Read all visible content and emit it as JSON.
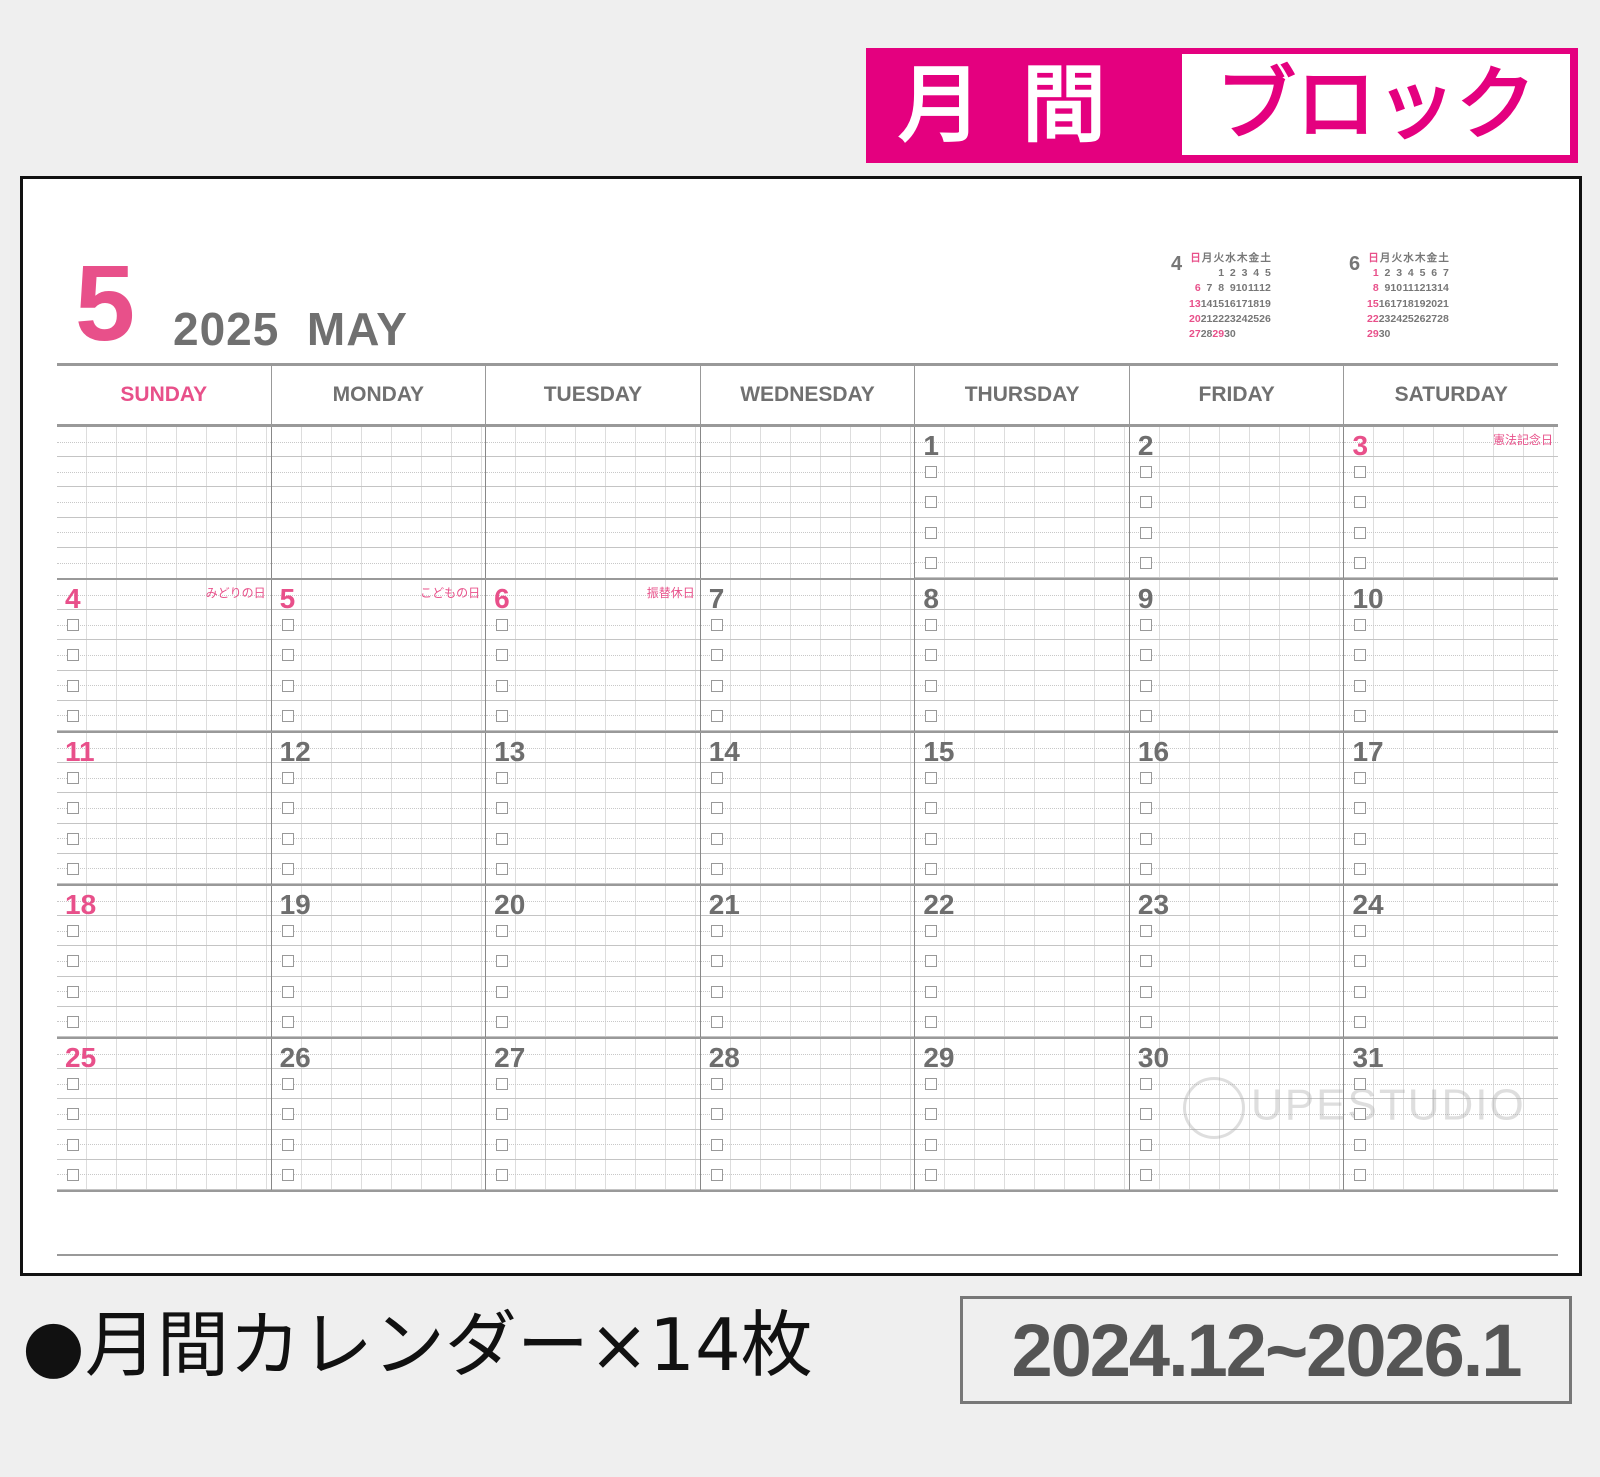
{
  "banner": {
    "left": "月間",
    "right": "ブロック",
    "color": "#e4007f"
  },
  "header": {
    "month_number": "5",
    "year_month": "2025  MAY"
  },
  "accent_colors": {
    "holiday": "#e8508a",
    "text": "#707070"
  },
  "mini_calendars": [
    {
      "month": "4",
      "weekdays": [
        "日",
        "月",
        "火",
        "水",
        "木",
        "金",
        "土"
      ],
      "weeks": [
        [
          "",
          "",
          "1",
          "2",
          "3",
          "4",
          "5"
        ],
        [
          "6",
          "7",
          "8",
          "9",
          "10",
          "11",
          "12"
        ],
        [
          "13",
          "14",
          "15",
          "16",
          "17",
          "18",
          "19"
        ],
        [
          "20",
          "21",
          "22",
          "23",
          "24",
          "25",
          "26"
        ],
        [
          "27",
          "28",
          "29",
          "30",
          "",
          "",
          ""
        ]
      ],
      "red_days": [
        "6",
        "13",
        "20",
        "27",
        "29"
      ]
    },
    {
      "month": "6",
      "weekdays": [
        "日",
        "月",
        "火",
        "水",
        "木",
        "金",
        "土"
      ],
      "weeks": [
        [
          "1",
          "2",
          "3",
          "4",
          "5",
          "6",
          "7"
        ],
        [
          "8",
          "9",
          "10",
          "11",
          "12",
          "13",
          "14"
        ],
        [
          "15",
          "16",
          "17",
          "18",
          "19",
          "20",
          "21"
        ],
        [
          "22",
          "23",
          "24",
          "25",
          "26",
          "27",
          "28"
        ],
        [
          "29",
          "30",
          "",
          "",
          "",
          "",
          ""
        ]
      ],
      "red_days": [
        "1",
        "8",
        "15",
        "22",
        "29"
      ]
    }
  ],
  "weekdays": [
    "SUNDAY",
    "MONDAY",
    "TUESDAY",
    "WEDNESDAY",
    "THURSDAY",
    "FRIDAY",
    "SATURDAY"
  ],
  "weeks": [
    [
      {
        "day": ""
      },
      {
        "day": ""
      },
      {
        "day": ""
      },
      {
        "day": ""
      },
      {
        "day": "1"
      },
      {
        "day": "2"
      },
      {
        "day": "3",
        "red": true,
        "holiday": "憲法記念日"
      }
    ],
    [
      {
        "day": "4",
        "red": true,
        "holiday": "みどりの日"
      },
      {
        "day": "5",
        "red": true,
        "holiday": "こどもの日"
      },
      {
        "day": "6",
        "red": true,
        "holiday": "振替休日"
      },
      {
        "day": "7"
      },
      {
        "day": "8"
      },
      {
        "day": "9"
      },
      {
        "day": "10"
      }
    ],
    [
      {
        "day": "11",
        "red": true
      },
      {
        "day": "12"
      },
      {
        "day": "13"
      },
      {
        "day": "14"
      },
      {
        "day": "15"
      },
      {
        "day": "16"
      },
      {
        "day": "17"
      }
    ],
    [
      {
        "day": "18",
        "red": true
      },
      {
        "day": "19"
      },
      {
        "day": "20"
      },
      {
        "day": "21"
      },
      {
        "day": "22"
      },
      {
        "day": "23"
      },
      {
        "day": "24"
      }
    ],
    [
      {
        "day": "25",
        "red": true
      },
      {
        "day": "26"
      },
      {
        "day": "27"
      },
      {
        "day": "28"
      },
      {
        "day": "29"
      },
      {
        "day": "30"
      },
      {
        "day": "31"
      }
    ]
  ],
  "watermark": "UPESTUDIO",
  "footer": {
    "description": "●月間カレンダー×14枚",
    "period": "2024.12~2026.1"
  }
}
